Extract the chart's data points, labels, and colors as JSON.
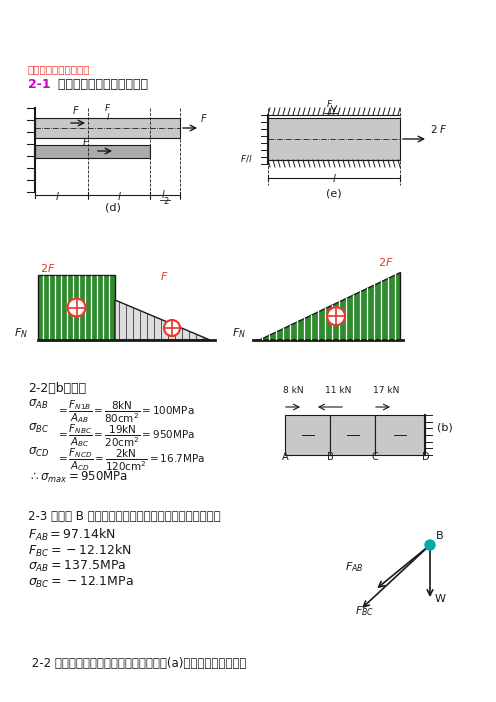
{
  "bg_color": "#ffffff",
  "red_color": "#e8352a",
  "magenta_color": "#cc00cc",
  "green_color": "#2e8b2e",
  "black_color": "#1a1a1a",
  "dark_color": "#333333",
  "gray_bar": "#c8c8c8",
  "title_text": "此文档下载后即可编辑",
  "s21_num": "2-1",
  "s21_text": "  试绘出下列各杆的轴力图。",
  "s22b": "2-2（b）答：",
  "s23_text": "2-3 答：以 B 点为研究对象，由平面汇交力系的平衡条件",
  "footer_text": " 2-2 求下列结构中指定杆内的应力。已知(a)图中杆的横截面面积"
}
